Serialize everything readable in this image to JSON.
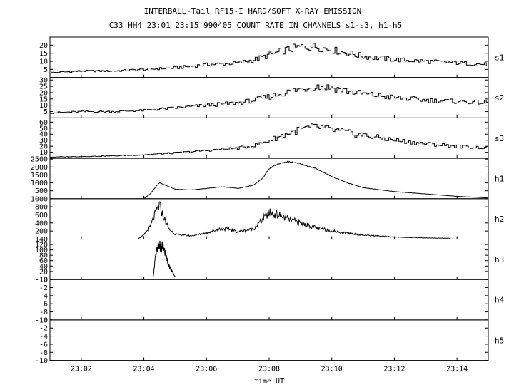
{
  "figure": {
    "title": "INTERBALL-Tail RF15-I HARD/SOFT X-RAY EMISSION",
    "subtitle": "C33 HH4 23:01 23:15 990405  COUNT RATE IN CHANNELS s1-s3, h1-h5",
    "xlabel": "time UT"
  },
  "chart_data": {
    "type": "line",
    "title": "INTERBALL-Tail RF15-I HARD/SOFT X-RAY EMISSION",
    "subtitle": "C33 HH4 23:01 23:15 990405  COUNT RATE IN CHANNELS s1-s3, h1-h5",
    "xlabel": "time UT",
    "x_unit": "minutes after 23:00 UT",
    "xlim": [
      1,
      15
    ],
    "x_ticks": [
      {
        "value": 2,
        "label": "23:02"
      },
      {
        "value": 4,
        "label": "23:04"
      },
      {
        "value": 6,
        "label": "23:06"
      },
      {
        "value": 8,
        "label": "23:08"
      },
      {
        "value": 10,
        "label": "23:10"
      },
      {
        "value": 12,
        "label": "23:12"
      },
      {
        "value": 14,
        "label": "23:14"
      }
    ],
    "grid": false,
    "panels": [
      {
        "name": "s1",
        "ylim": [
          0,
          25
        ],
        "ticks": [
          {
            "v": 5,
            "l": "5"
          },
          {
            "v": 10,
            "l": "10"
          },
          {
            "v": 15,
            "l": "15"
          },
          {
            "v": 20,
            "l": "20"
          }
        ],
        "x": [
          1.0,
          2.0,
          3.0,
          4.0,
          5.0,
          6.0,
          7.0,
          7.5,
          8.0,
          8.5,
          9.0,
          9.5,
          10.0,
          10.5,
          11.0,
          12.0,
          13.0,
          14.0,
          15.0
        ],
        "y": [
          3,
          4,
          4,
          5,
          6,
          8,
          9,
          11,
          14,
          17,
          19,
          19,
          17,
          15,
          13,
          11,
          10,
          9,
          8
        ]
      },
      {
        "name": "s2",
        "ylim": [
          0,
          32
        ],
        "ticks": [
          {
            "v": 5,
            "l": "5"
          },
          {
            "v": 10,
            "l": "10"
          },
          {
            "v": 15,
            "l": "15"
          },
          {
            "v": 20,
            "l": "20"
          },
          {
            "v": 25,
            "l": "25"
          },
          {
            "v": 30,
            "l": "30"
          }
        ],
        "x": [
          1.0,
          2.0,
          3.0,
          4.0,
          5.0,
          6.0,
          7.0,
          7.5,
          8.0,
          8.5,
          9.0,
          9.5,
          10.0,
          10.5,
          11.0,
          12.0,
          13.0,
          14.0,
          15.0
        ],
        "y": [
          4,
          5,
          5,
          6,
          8,
          10,
          12,
          14,
          17,
          20,
          23,
          25,
          24,
          21,
          19,
          16,
          14,
          13,
          12
        ]
      },
      {
        "name": "s3",
        "ylim": [
          0,
          67
        ],
        "ticks": [
          {
            "v": 10,
            "l": "10"
          },
          {
            "v": 20,
            "l": "20"
          },
          {
            "v": 30,
            "l": "30"
          },
          {
            "v": 40,
            "l": "40"
          },
          {
            "v": 50,
            "l": "50"
          },
          {
            "v": 60,
            "l": "60"
          }
        ],
        "x": [
          1.0,
          2.0,
          3.0,
          4.0,
          5.0,
          6.0,
          7.0,
          7.5,
          8.0,
          8.5,
          9.0,
          9.5,
          10.0,
          10.5,
          11.0,
          12.0,
          13.0,
          14.0,
          15.0
        ],
        "y": [
          2,
          3,
          4,
          6,
          9,
          13,
          17,
          21,
          30,
          40,
          48,
          52,
          47,
          42,
          38,
          30,
          24,
          20,
          17
        ]
      },
      {
        "name": "h1",
        "ylim": [
          0,
          2550
        ],
        "ticks": [
          {
            "v": 500,
            "l": "500"
          },
          {
            "v": 1000,
            "l": "1000"
          },
          {
            "v": 1500,
            "l": "1500"
          },
          {
            "v": 2000,
            "l": "2000"
          },
          {
            "v": 2500,
            "l": "2500"
          }
        ],
        "x": [
          4.0,
          4.2,
          4.4,
          4.5,
          4.7,
          5.0,
          5.5,
          6.0,
          6.5,
          6.8,
          7.0,
          7.5,
          7.8,
          8.0,
          8.3,
          8.6,
          9.0,
          9.5,
          10.0,
          10.5,
          11.0,
          12.0,
          13.0,
          14.0,
          15.0
        ],
        "y": [
          0,
          300,
          800,
          1000,
          850,
          600,
          550,
          650,
          750,
          700,
          650,
          850,
          1300,
          1900,
          2200,
          2350,
          2200,
          1900,
          1400,
          1000,
          700,
          450,
          300,
          150,
          50
        ]
      },
      {
        "name": "h2",
        "ylim": [
          0,
          1000
        ],
        "ticks": [
          {
            "v": 200,
            "l": "200"
          },
          {
            "v": 400,
            "l": "400"
          },
          {
            "v": 600,
            "l": "600"
          },
          {
            "v": 800,
            "l": "800"
          },
          {
            "v": 1000,
            "l": "1000"
          }
        ],
        "x": [
          3.8,
          4.0,
          4.2,
          4.4,
          4.5,
          4.6,
          4.8,
          5.0,
          5.5,
          6.0,
          6.4,
          6.7,
          7.0,
          7.5,
          7.8,
          8.0,
          8.3,
          8.6,
          9.0,
          9.5,
          10.0,
          11.0,
          12.0,
          13.0,
          13.8
        ],
        "y": [
          0,
          100,
          300,
          700,
          850,
          600,
          250,
          120,
          80,
          150,
          250,
          250,
          180,
          250,
          500,
          650,
          600,
          500,
          400,
          280,
          200,
          100,
          50,
          30,
          20
        ]
      },
      {
        "name": "h3",
        "ylim": [
          -10,
          140
        ],
        "ticks": [
          {
            "v": -10,
            "l": "-10"
          },
          {
            "v": 20,
            "l": "20"
          },
          {
            "v": 40,
            "l": "40"
          },
          {
            "v": 60,
            "l": "60"
          },
          {
            "v": 80,
            "l": "80"
          },
          {
            "v": 100,
            "l": "100"
          },
          {
            "v": 120,
            "l": "120"
          },
          {
            "v": 140,
            "l": "140"
          }
        ],
        "x": [
          4.3,
          4.35,
          4.4,
          4.45,
          4.5,
          4.55,
          4.6,
          4.65,
          4.7,
          4.75,
          4.8,
          4.9,
          5.0
        ],
        "y": [
          0,
          60,
          90,
          110,
          120,
          95,
          120,
          100,
          80,
          60,
          40,
          20,
          0
        ]
      },
      {
        "name": "h4",
        "ylim": [
          -10,
          0
        ],
        "ticks": [
          {
            "v": -10,
            "l": "-10"
          },
          {
            "v": -8,
            "l": "-8"
          },
          {
            "v": -6,
            "l": "-6"
          },
          {
            "v": -4,
            "l": "-4"
          },
          {
            "v": -2,
            "l": "-2"
          },
          {
            "v": 0,
            "l": "0"
          }
        ],
        "x": [],
        "y": []
      },
      {
        "name": "h5",
        "ylim": [
          -10,
          0
        ],
        "ticks": [
          {
            "v": -10,
            "l": "-10"
          },
          {
            "v": -8,
            "l": "-8"
          },
          {
            "v": -6,
            "l": "-6"
          },
          {
            "v": -4,
            "l": "-4"
          },
          {
            "v": -2,
            "l": "-2"
          },
          {
            "v": 0,
            "l": "0"
          }
        ],
        "x": [],
        "y": []
      }
    ]
  }
}
